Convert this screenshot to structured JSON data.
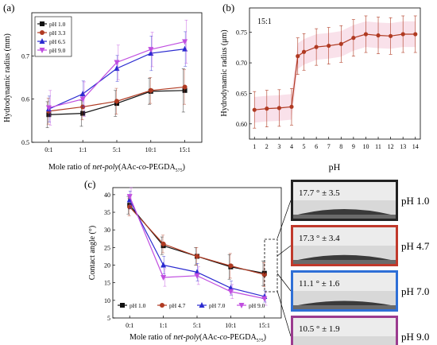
{
  "panel_a": {
    "label": "(a)",
    "ylabel": "Hydrodynamic radius (mm)",
    "xlabel_prefix": "Mole ratio of ",
    "xlabel_italic": "net-poly",
    "xlabel_mid": "(AAc-",
    "xlabel_italic2": "co",
    "xlabel_suffix": "-PEGDA",
    "xlabel_sub": "575",
    "xlabel_end": ")"
  },
  "panel_b": {
    "label": "(b)",
    "ylabel": "Hydrodynamic radius (μm)",
    "xlabel": "pH",
    "annotation": "15:1"
  },
  "panel_c": {
    "label": "(c)",
    "ylabel": "Contact angle (°)",
    "xlabel_prefix": "Mole ratio of ",
    "xlabel_italic": "net-poly",
    "xlabel_mid": "(AAc-",
    "xlabel_italic2": "co",
    "xlabel_suffix": "-PEGDA",
    "xlabel_sub": "575",
    "xlabel_end": ")"
  },
  "droplets": [
    {
      "angle": "17.7 ° ± 3.5",
      "ph": "pH 1.0",
      "border": "#222222"
    },
    {
      "angle": "17.3 ° ± 3.4",
      "ph": "pH 4.7",
      "border": "#c0392b"
    },
    {
      "angle": "11.1 ° ± 1.6",
      "ph": "pH 7.0",
      "border": "#2e6fd6"
    },
    {
      "angle": "10.5 ° ± 1.9",
      "ph": "pH 9.0",
      "border": "#9b3b8f"
    }
  ],
  "chart_data": [
    {
      "type": "line",
      "panel": "a",
      "categories": [
        "0:1",
        "1:1",
        "5:1",
        "10:1",
        "15:1"
      ],
      "ylim": [
        0.5,
        0.8
      ],
      "yticks": [
        0.5,
        0.6,
        0.7
      ],
      "legend_position": "top-left",
      "series": [
        {
          "name": "pH 1.0",
          "color": "#111111",
          "marker": "square",
          "values": [
            0.564,
            0.567,
            0.59,
            0.618,
            0.62
          ],
          "errors": [
            0.03,
            0.03,
            0.03,
            0.03,
            0.05
          ]
        },
        {
          "name": "pH 3.3",
          "color": "#b03a22",
          "marker": "circle",
          "values": [
            0.572,
            0.582,
            0.595,
            0.62,
            0.628
          ],
          "errors": [
            0.03,
            0.03,
            0.03,
            0.03,
            0.04
          ]
        },
        {
          "name": "pH 6.5",
          "color": "#2a2ad0",
          "marker": "triangle-up",
          "values": [
            0.577,
            0.612,
            0.671,
            0.706,
            0.716
          ],
          "errors": [
            0.03,
            0.03,
            0.03,
            0.04,
            0.04
          ]
        },
        {
          "name": "pH 9.0",
          "color": "#c04ee0",
          "marker": "triangle-down",
          "values": [
            0.58,
            0.6,
            0.685,
            0.715,
            0.733
          ],
          "errors": [
            0.04,
            0.04,
            0.04,
            0.04,
            0.05
          ]
        }
      ]
    },
    {
      "type": "line",
      "panel": "b",
      "x": [
        1,
        2,
        3,
        4,
        4.5,
        5,
        6,
        7,
        8,
        9,
        10,
        11,
        12,
        13,
        14
      ],
      "xlim": [
        0.6,
        14.4
      ],
      "xticks": [
        1,
        2,
        3,
        4,
        5,
        6,
        7,
        8,
        9,
        10,
        11,
        12,
        13,
        14
      ],
      "ylim": [
        0.575,
        0.79
      ],
      "yticks": [
        0.6,
        0.65,
        0.7,
        0.75
      ],
      "series": [
        {
          "name": "15:1",
          "color": "#b03a22",
          "marker": "circle",
          "values": [
            0.623,
            0.625,
            0.626,
            0.628,
            0.711,
            0.718,
            0.726,
            0.728,
            0.731,
            0.741,
            0.747,
            0.745,
            0.744,
            0.747,
            0.747
          ],
          "errors": [
            0.03,
            0.03,
            0.03,
            0.03,
            0.03,
            0.03,
            0.03,
            0.03,
            0.03,
            0.03,
            0.03,
            0.03,
            0.03,
            0.03,
            0.03
          ]
        }
      ]
    },
    {
      "type": "line",
      "panel": "c",
      "categories": [
        "0:1",
        "1:1",
        "5:1",
        "10:1",
        "15:1"
      ],
      "ylim": [
        5,
        42
      ],
      "yticks": [
        5,
        10,
        15,
        20,
        25,
        30,
        35,
        40
      ],
      "legend_position": "bottom",
      "series": [
        {
          "name": "pH 1.0",
          "color": "#111111",
          "marker": "square",
          "values": [
            37.0,
            25.5,
            22.5,
            19.5,
            17.7
          ],
          "errors": [
            2.5,
            2.5,
            2.5,
            3.5,
            3.5
          ]
        },
        {
          "name": "pH 4.7",
          "color": "#b03a22",
          "marker": "circle",
          "values": [
            36.5,
            26.0,
            22.5,
            19.8,
            17.3
          ],
          "errors": [
            2.5,
            2.5,
            2.5,
            3.5,
            3.4
          ]
        },
        {
          "name": "pH 7.0",
          "color": "#2a2ad0",
          "marker": "triangle-up",
          "values": [
            38.5,
            20.0,
            18.0,
            13.5,
            11.1
          ],
          "errors": [
            2.5,
            2.5,
            2.5,
            2.0,
            1.6
          ]
        },
        {
          "name": "pH 9.0",
          "color": "#c04ee0",
          "marker": "triangle-down",
          "values": [
            39.5,
            16.5,
            17.0,
            12.5,
            10.5
          ],
          "errors": [
            2.5,
            2.5,
            2.5,
            2.0,
            1.9
          ]
        }
      ]
    }
  ]
}
